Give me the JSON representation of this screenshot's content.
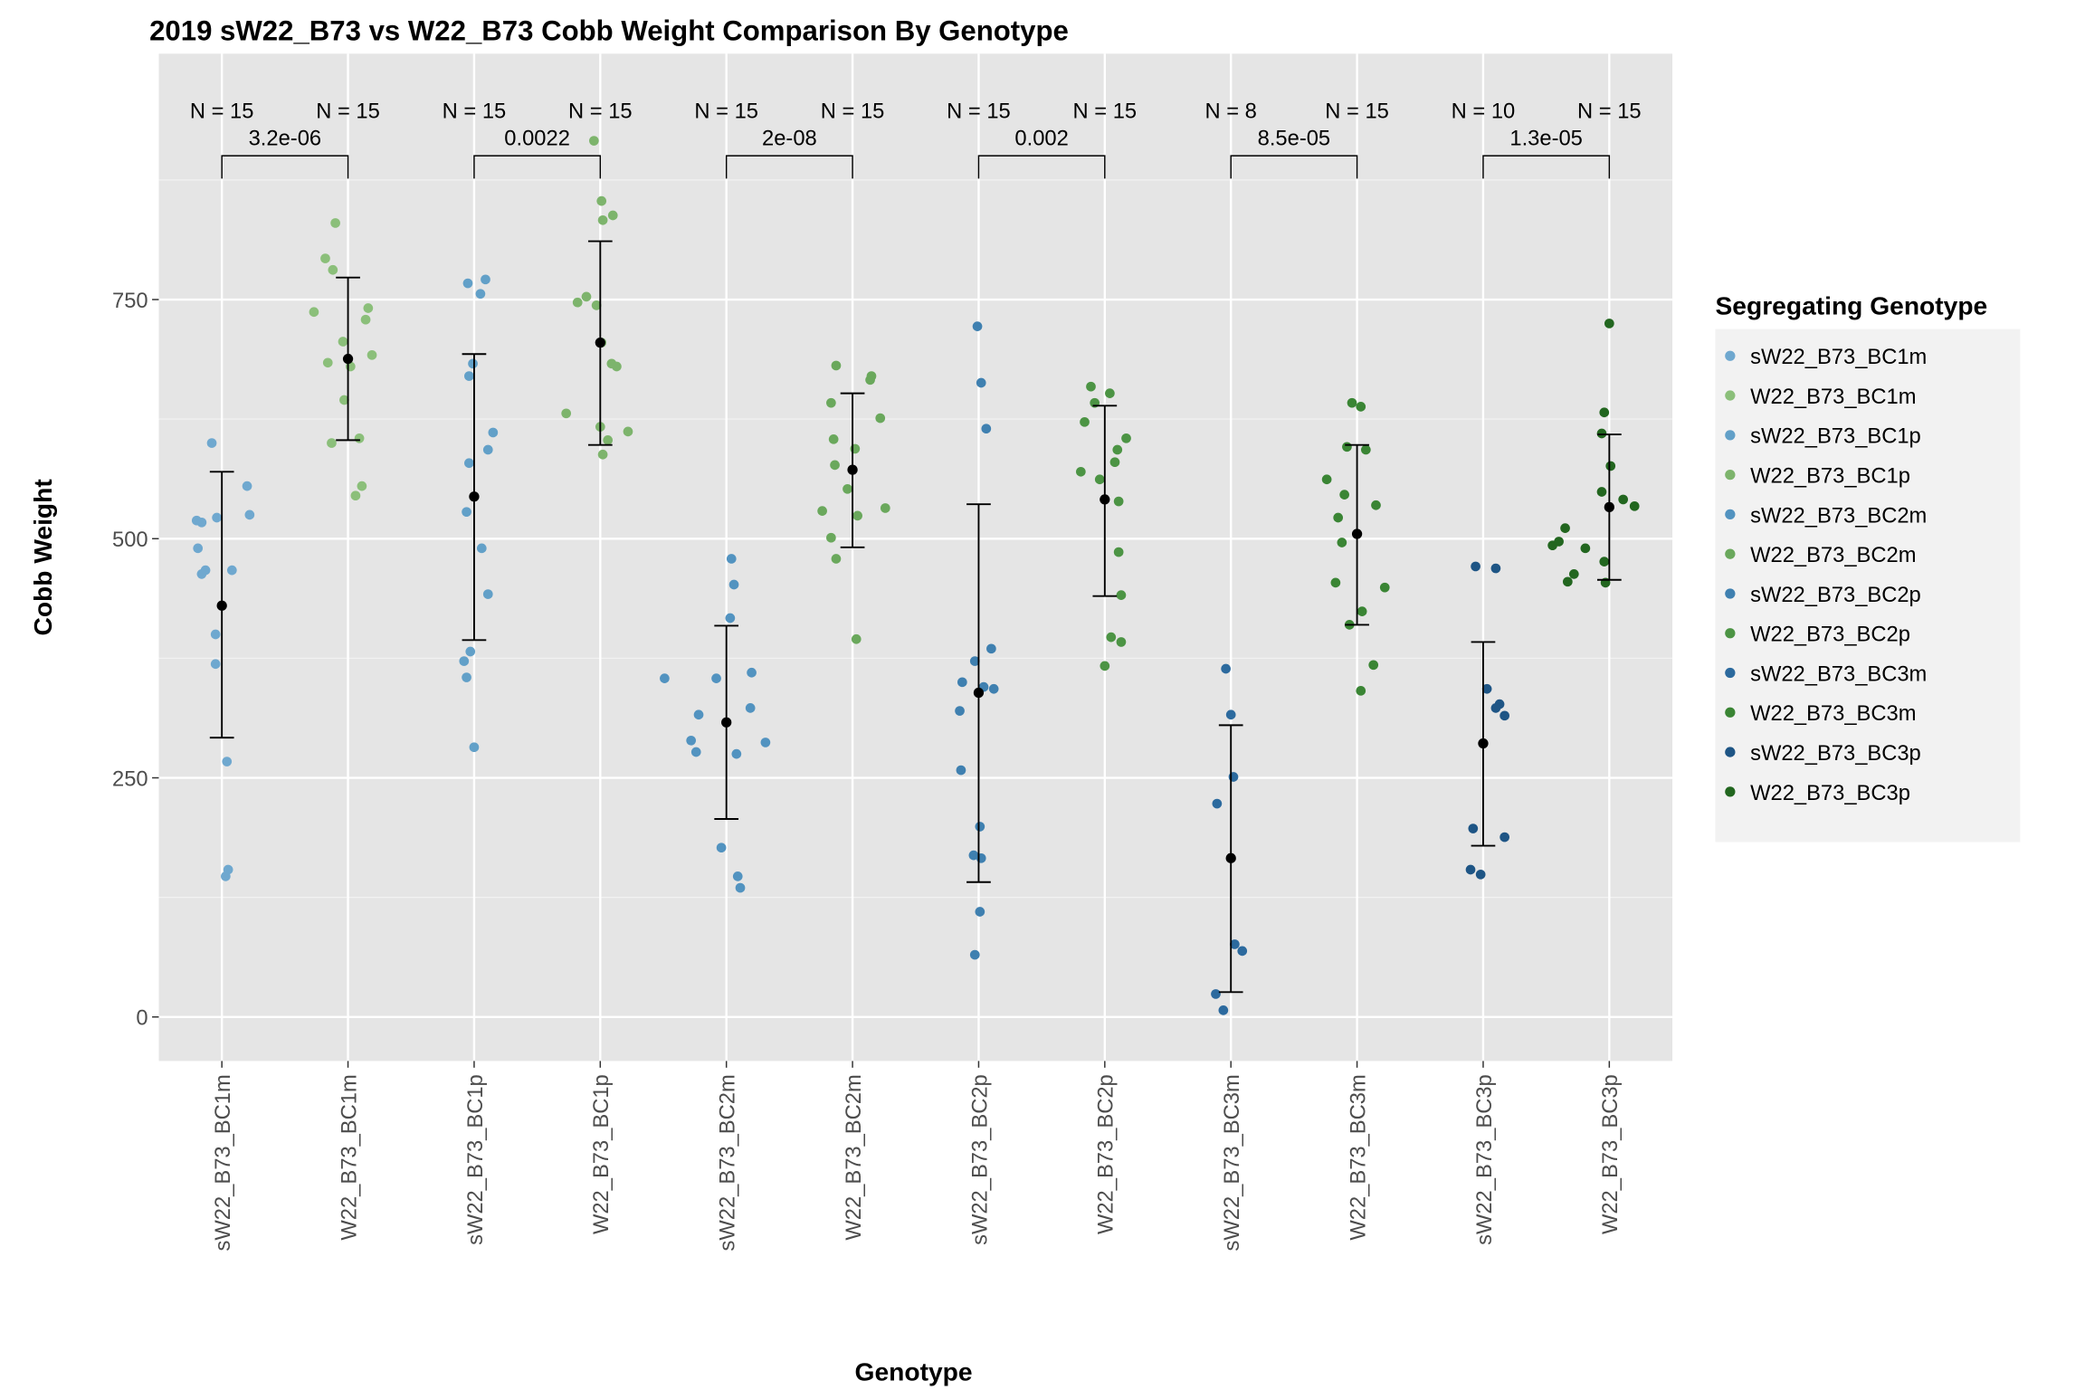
{
  "chart_data": {
    "type": "scatter",
    "title": "2019 sW22_B73 vs W22_B73 Cobb Weight Comparison By Genotype",
    "xlabel": "Genotype",
    "ylabel": "Cobb Weight",
    "ylim": [
      -46,
      1007
    ],
    "yticks": [
      0,
      250,
      500,
      750
    ],
    "grid": true,
    "legend": {
      "title": "Segregating Genotype",
      "placement": "right"
    },
    "categories": [
      "sW22_B73_BC1m",
      "W22_B73_BC1m",
      "sW22_B73_BC1p",
      "W22_B73_BC1p",
      "sW22_B73_BC2m",
      "W22_B73_BC2m",
      "sW22_B73_BC2p",
      "W22_B73_BC2p",
      "sW22_B73_BC3m",
      "W22_B73_BC3m",
      "sW22_B73_BC3p",
      "W22_B73_BC3p"
    ],
    "colors": [
      "#6fa8cf",
      "#8bbf7a",
      "#62a0c8",
      "#7db46c",
      "#5293c0",
      "#6aa85c",
      "#3f80b0",
      "#4c9444",
      "#2c6a9e",
      "#3a8534",
      "#1e5585",
      "#22661f"
    ],
    "n_labels": [
      "N = 15",
      "N = 15",
      "N = 15",
      "N = 15",
      "N = 15",
      "N = 15",
      "N = 15",
      "N = 15",
      "N = 8",
      "N = 15",
      "N = 10",
      "N = 15"
    ],
    "summary": [
      {
        "mean": 430,
        "low": 292,
        "high": 570
      },
      {
        "mean": 688,
        "low": 603,
        "high": 773
      },
      {
        "mean": 544,
        "low": 394,
        "high": 693
      },
      {
        "mean": 705,
        "low": 598,
        "high": 811
      },
      {
        "mean": 308,
        "low": 207,
        "high": 409
      },
      {
        "mean": 572,
        "low": 491,
        "high": 652
      },
      {
        "mean": 339,
        "low": 141,
        "high": 536
      },
      {
        "mean": 541,
        "low": 440,
        "high": 639
      },
      {
        "mean": 166,
        "low": 26,
        "high": 305
      },
      {
        "mean": 505,
        "low": 410,
        "high": 598
      },
      {
        "mean": 286,
        "low": 179,
        "high": 392
      },
      {
        "mean": 533,
        "low": 457,
        "high": 609
      }
    ],
    "comparisons": [
      {
        "groups": [
          0,
          1
        ],
        "p": "3.2e-06"
      },
      {
        "groups": [
          2,
          3
        ],
        "p": "0.0022"
      },
      {
        "groups": [
          4,
          5
        ],
        "p": "2e-08"
      },
      {
        "groups": [
          6,
          7
        ],
        "p": "0.002"
      },
      {
        "groups": [
          8,
          9
        ],
        "p": "8.5e-05"
      },
      {
        "groups": [
          10,
          11
        ],
        "p": "1.3e-05"
      }
    ],
    "points": [
      [
        [
          -0.08,
          600
        ],
        [
          0.2,
          555
        ],
        [
          -0.2,
          519
        ],
        [
          -0.16,
          517
        ],
        [
          -0.04,
          522
        ],
        [
          0.22,
          525
        ],
        [
          -0.19,
          490
        ],
        [
          -0.13,
          467
        ],
        [
          -0.16,
          463
        ],
        [
          0.08,
          467
        ],
        [
          -0.05,
          400
        ],
        [
          -0.05,
          369
        ],
        [
          0.04,
          267
        ],
        [
          0.05,
          154
        ],
        [
          0.03,
          147
        ]
      ],
      [
        [
          -0.1,
          830
        ],
        [
          -0.18,
          793
        ],
        [
          -0.12,
          781
        ],
        [
          -0.27,
          737
        ],
        [
          0.16,
          741
        ],
        [
          0.14,
          729
        ],
        [
          -0.04,
          706
        ],
        [
          -0.16,
          684
        ],
        [
          0.02,
          680
        ],
        [
          0.19,
          692
        ],
        [
          -0.03,
          645
        ],
        [
          0.09,
          605
        ],
        [
          -0.13,
          600
        ],
        [
          0.11,
          555
        ],
        [
          0.06,
          545
        ]
      ],
      [
        [
          -0.05,
          767
        ],
        [
          0.09,
          771
        ],
        [
          0.05,
          756
        ],
        [
          -0.01,
          683
        ],
        [
          -0.04,
          670
        ],
        [
          0.15,
          611
        ],
        [
          0.11,
          593
        ],
        [
          -0.04,
          579
        ],
        [
          -0.06,
          528
        ],
        [
          0.06,
          490
        ],
        [
          0.11,
          442
        ],
        [
          -0.03,
          382
        ],
        [
          -0.08,
          372
        ],
        [
          -0.06,
          355
        ],
        [
          0,
          282
        ]
      ],
      [
        [
          -0.05,
          916
        ],
        [
          0.01,
          853
        ],
        [
          0.1,
          838
        ],
        [
          0.02,
          833
        ],
        [
          -0.11,
          753
        ],
        [
          -0.18,
          747
        ],
        [
          -0.03,
          744
        ],
        [
          0.01,
          705
        ],
        [
          0.09,
          683
        ],
        [
          0.13,
          680
        ],
        [
          -0.27,
          631
        ],
        [
          0,
          617
        ],
        [
          0.22,
          612
        ],
        [
          0.06,
          603
        ],
        [
          0.02,
          588
        ]
      ],
      [
        [
          0.04,
          479
        ],
        [
          0.06,
          452
        ],
        [
          0.03,
          417
        ],
        [
          -0.08,
          354
        ],
        [
          0.2,
          360
        ],
        [
          -0.49,
          354
        ],
        [
          0.19,
          323
        ],
        [
          -0.22,
          316
        ],
        [
          -0.28,
          289
        ],
        [
          -0.24,
          277
        ],
        [
          0.08,
          275
        ],
        [
          0.31,
          287
        ],
        [
          -0.04,
          177
        ],
        [
          0.09,
          147
        ],
        [
          0.11,
          135
        ]
      ],
      [
        [
          -0.13,
          681
        ],
        [
          0.15,
          670
        ],
        [
          0.14,
          666
        ],
        [
          -0.17,
          642
        ],
        [
          0.02,
          594
        ],
        [
          -0.15,
          604
        ],
        [
          0.22,
          626
        ],
        [
          -0.14,
          577
        ],
        [
          -0.04,
          552
        ],
        [
          -0.24,
          529
        ],
        [
          0.26,
          532
        ],
        [
          0.04,
          524
        ],
        [
          -0.17,
          501
        ],
        [
          -0.13,
          479
        ],
        [
          0.03,
          395
        ]
      ],
      [
        [
          -0.01,
          722
        ],
        [
          0.02,
          663
        ],
        [
          0.06,
          615
        ],
        [
          -0.03,
          372
        ],
        [
          0.1,
          385
        ],
        [
          -0.13,
          350
        ],
        [
          0.04,
          345
        ],
        [
          0.12,
          343
        ],
        [
          -0.15,
          320
        ],
        [
          -0.14,
          258
        ],
        [
          0.01,
          199
        ],
        [
          -0.04,
          169
        ],
        [
          0.02,
          166
        ],
        [
          0.01,
          110
        ],
        [
          -0.03,
          65
        ]
      ],
      [
        [
          -0.11,
          659
        ],
        [
          0.04,
          652
        ],
        [
          -0.08,
          642
        ],
        [
          -0.16,
          622
        ],
        [
          0.17,
          605
        ],
        [
          0.1,
          593
        ],
        [
          0.08,
          580
        ],
        [
          -0.19,
          570
        ],
        [
          -0.04,
          562
        ],
        [
          0.11,
          539
        ],
        [
          0.11,
          486
        ],
        [
          0.13,
          441
        ],
        [
          0.05,
          397
        ],
        [
          0.13,
          392
        ],
        [
          0,
          367
        ]
      ],
      [
        [
          -0.04,
          364
        ],
        [
          0,
          316
        ],
        [
          0.02,
          251
        ],
        [
          -0.11,
          223
        ],
        [
          0.03,
          76
        ],
        [
          0.09,
          69
        ],
        [
          -0.12,
          24
        ],
        [
          -0.06,
          7
        ]
      ],
      [
        [
          -0.04,
          642
        ],
        [
          0.03,
          638
        ],
        [
          0.07,
          593
        ],
        [
          -0.08,
          596
        ],
        [
          -0.24,
          562
        ],
        [
          -0.1,
          546
        ],
        [
          -0.15,
          522
        ],
        [
          0.15,
          535
        ],
        [
          -0.12,
          496
        ],
        [
          0.22,
          449
        ],
        [
          -0.17,
          454
        ],
        [
          0.04,
          424
        ],
        [
          -0.06,
          410
        ],
        [
          0.13,
          368
        ],
        [
          0.03,
          341
        ]
      ],
      [
        [
          -0.06,
          471
        ],
        [
          0.1,
          469
        ],
        [
          0.03,
          343
        ],
        [
          0.13,
          327
        ],
        [
          0.1,
          323
        ],
        [
          0.17,
          315
        ],
        [
          -0.08,
          197
        ],
        [
          0.17,
          188
        ],
        [
          -0.1,
          154
        ],
        [
          -0.02,
          149
        ]
      ],
      [
        [
          0,
          725
        ],
        [
          -0.04,
          632
        ],
        [
          -0.06,
          610
        ],
        [
          0.01,
          576
        ],
        [
          0.11,
          541
        ],
        [
          -0.06,
          549
        ],
        [
          0.2,
          534
        ],
        [
          -0.35,
          511
        ],
        [
          -0.19,
          490
        ],
        [
          -0.45,
          493
        ],
        [
          -0.4,
          497
        ],
        [
          -0.04,
          476
        ],
        [
          -0.28,
          463
        ],
        [
          -0.33,
          455
        ],
        [
          -0.03,
          454
        ]
      ]
    ]
  }
}
